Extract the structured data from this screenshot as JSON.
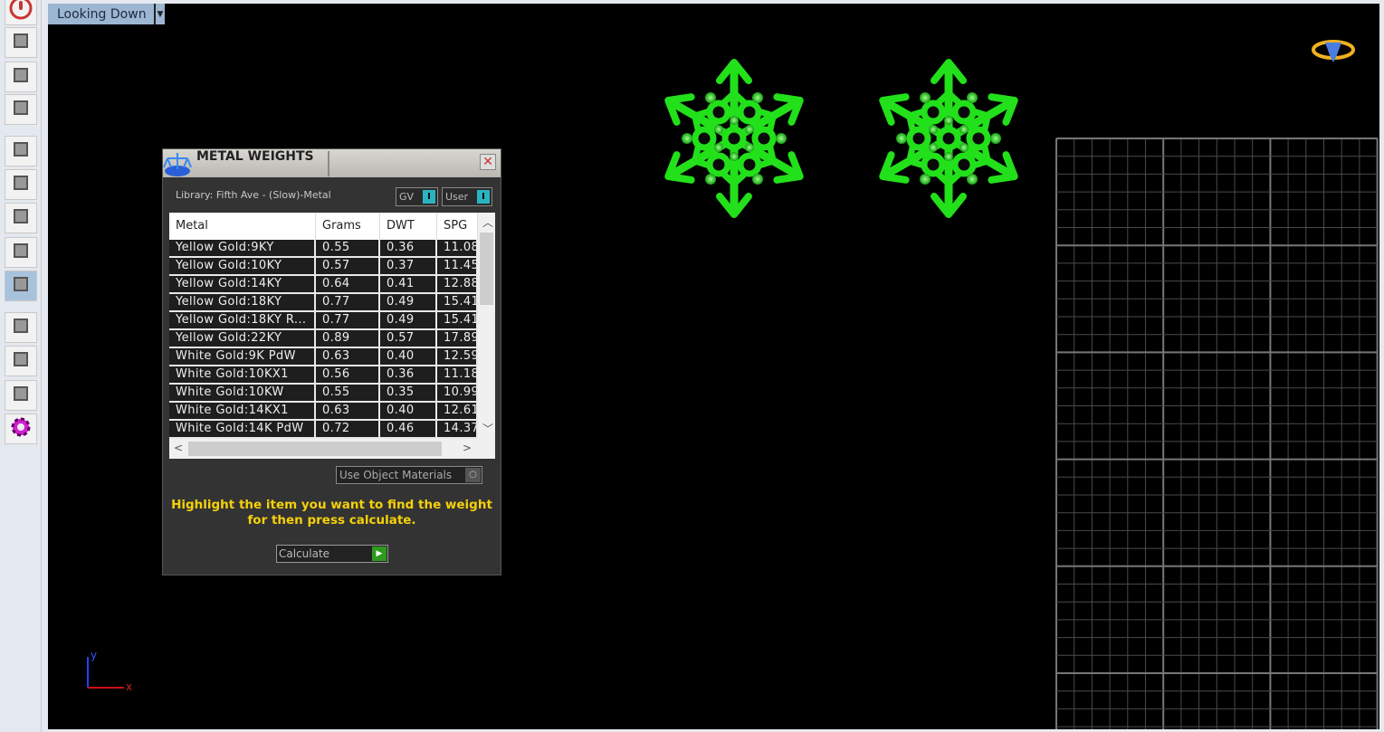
{
  "view": {
    "mode": "Looking Down"
  },
  "toolbar": {
    "items": [
      "power-icon",
      "tri-axis-icon",
      "globe-icon",
      "nodes-icon",
      "move-axes-icon",
      "cube-vertex-icon",
      "cube-edge-icon",
      "cube-corner-icon",
      "cube-active-icon",
      "brush-icon",
      "transform-icon",
      "crossed-box-icon",
      "gear-icon"
    ],
    "active_index": 8
  },
  "dialog": {
    "title": "METAL WEIGHTS",
    "close": "✕",
    "library": "Library: Fifth Ave - (Slow)-Metal",
    "toggle_gv": "GV",
    "toggle_user": "User",
    "toggle_knob": "I",
    "columns": [
      "Metal",
      "Grams",
      "DWT",
      "SPG"
    ],
    "rows": [
      [
        "Yellow Gold:9KY",
        "0.55",
        "0.36",
        "11.08"
      ],
      [
        "Yellow Gold:10KY",
        "0.57",
        "0.37",
        "11.45"
      ],
      [
        "Yellow Gold:14KY",
        "0.64",
        "0.41",
        "12.88"
      ],
      [
        "Yellow Gold:18KY",
        "0.77",
        "0.49",
        "15.41"
      ],
      [
        "Yellow Gold:18KY R...",
        "0.77",
        "0.49",
        "15.41"
      ],
      [
        "Yellow Gold:22KY",
        "0.89",
        "0.57",
        "17.89"
      ],
      [
        "White Gold:9K PdW",
        "0.63",
        "0.40",
        "12.59"
      ],
      [
        "White Gold:10KX1",
        "0.56",
        "0.36",
        "11.18"
      ],
      [
        "White Gold:10KW",
        "0.55",
        "0.35",
        "10.99"
      ],
      [
        "White Gold:14KX1",
        "0.63",
        "0.40",
        "12.61"
      ],
      [
        "White Gold:14K PdW",
        "0.72",
        "0.46",
        "14.37"
      ]
    ],
    "use_object_materials": "Use Object Materials",
    "hint_line1": "Highlight the item you want to find the weight",
    "hint_line2": "for then press calculate.",
    "calculate": "Calculate"
  },
  "axis": {
    "y": "y",
    "x": "x"
  },
  "colors": {
    "snowflake": "#22e01a",
    "hint": "#f5d10a",
    "toggle": "#2ab3c0",
    "calc": "#2f9a1f",
    "view_menu": "#9db6d2"
  }
}
